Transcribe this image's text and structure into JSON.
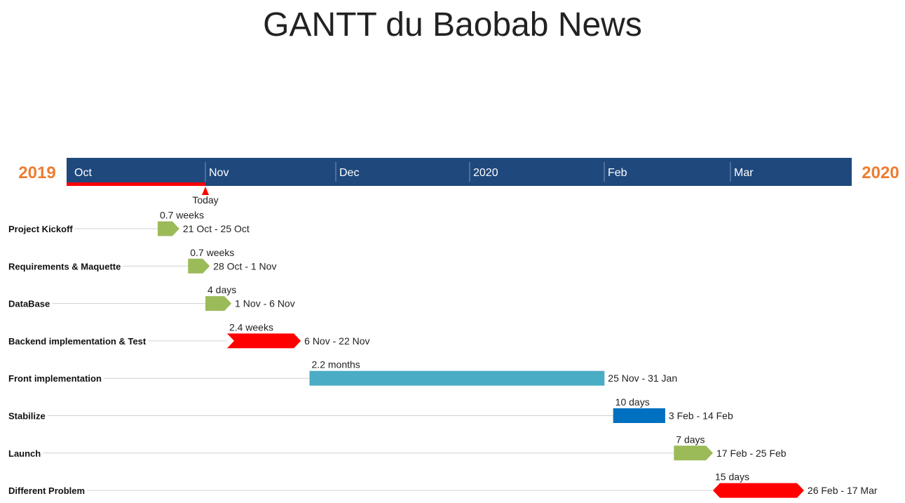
{
  "chart_data": {
    "type": "gantt",
    "title": "GANTT du Baobab News",
    "start_year_label": "2019",
    "end_year_label": "2020",
    "timeline_range": [
      "2019-09-30",
      "2020-03-29"
    ],
    "timeline_labels": [
      {
        "label": "Oct",
        "date": "2019-10-01"
      },
      {
        "label": "Nov",
        "date": "2019-11-01"
      },
      {
        "label": "Dec",
        "date": "2019-12-01"
      },
      {
        "label": "2020",
        "date": "2020-01-01"
      },
      {
        "label": "Feb",
        "date": "2020-02-01"
      },
      {
        "label": "Mar",
        "date": "2020-03-01"
      }
    ],
    "today": {
      "label": "Today",
      "date": "2019-11-01"
    },
    "tasks": [
      {
        "name": "Project Kickoff",
        "start": "2019-10-21",
        "end": "2019-10-25",
        "duration_label": "0.7 weeks",
        "date_label": "21 Oct - 25 Oct",
        "shape": "arrow",
        "color": "#9bbb59"
      },
      {
        "name": "Requirements & Maquette",
        "start": "2019-10-28",
        "end": "2019-11-01",
        "duration_label": "0.7 weeks",
        "date_label": "28 Oct - 1 Nov",
        "shape": "arrow",
        "color": "#9bbb59"
      },
      {
        "name": "DataBase",
        "start": "2019-11-01",
        "end": "2019-11-06",
        "duration_label": "4 days",
        "date_label": "1 Nov - 6 Nov",
        "shape": "arrow",
        "color": "#9bbb59"
      },
      {
        "name": "Backend implementation & Test",
        "start": "2019-11-06",
        "end": "2019-11-22",
        "duration_label": "2.4 weeks",
        "date_label": "6 Nov - 22 Nov",
        "shape": "chevron",
        "color": "#ff0000"
      },
      {
        "name": "Front implementation",
        "start": "2019-11-25",
        "end": "2020-01-31",
        "duration_label": "2.2 months",
        "date_label": "25 Nov - 31 Jan",
        "shape": "rect",
        "color": "#4bacc6"
      },
      {
        "name": "Stabilize",
        "start": "2020-02-03",
        "end": "2020-02-14",
        "duration_label": "10 days",
        "date_label": "3 Feb - 14 Feb",
        "shape": "rect",
        "color": "#0070c0"
      },
      {
        "name": "Launch",
        "start": "2020-02-17",
        "end": "2020-02-25",
        "duration_label": "7 days",
        "date_label": "17 Feb - 25 Feb",
        "shape": "arrow",
        "color": "#9bbb59"
      },
      {
        "name": "Different Problem",
        "start": "2020-02-26",
        "end": "2020-03-17",
        "duration_label": "15 days",
        "date_label": "26 Feb - 17 Mar",
        "shape": "double-arrow",
        "color": "#ff0000"
      }
    ],
    "colors": {
      "timeline_band": "#1f497d",
      "year_label": "#ed7d31",
      "today_marker": "#ff0000",
      "row_line": "#d0d0d0"
    }
  }
}
